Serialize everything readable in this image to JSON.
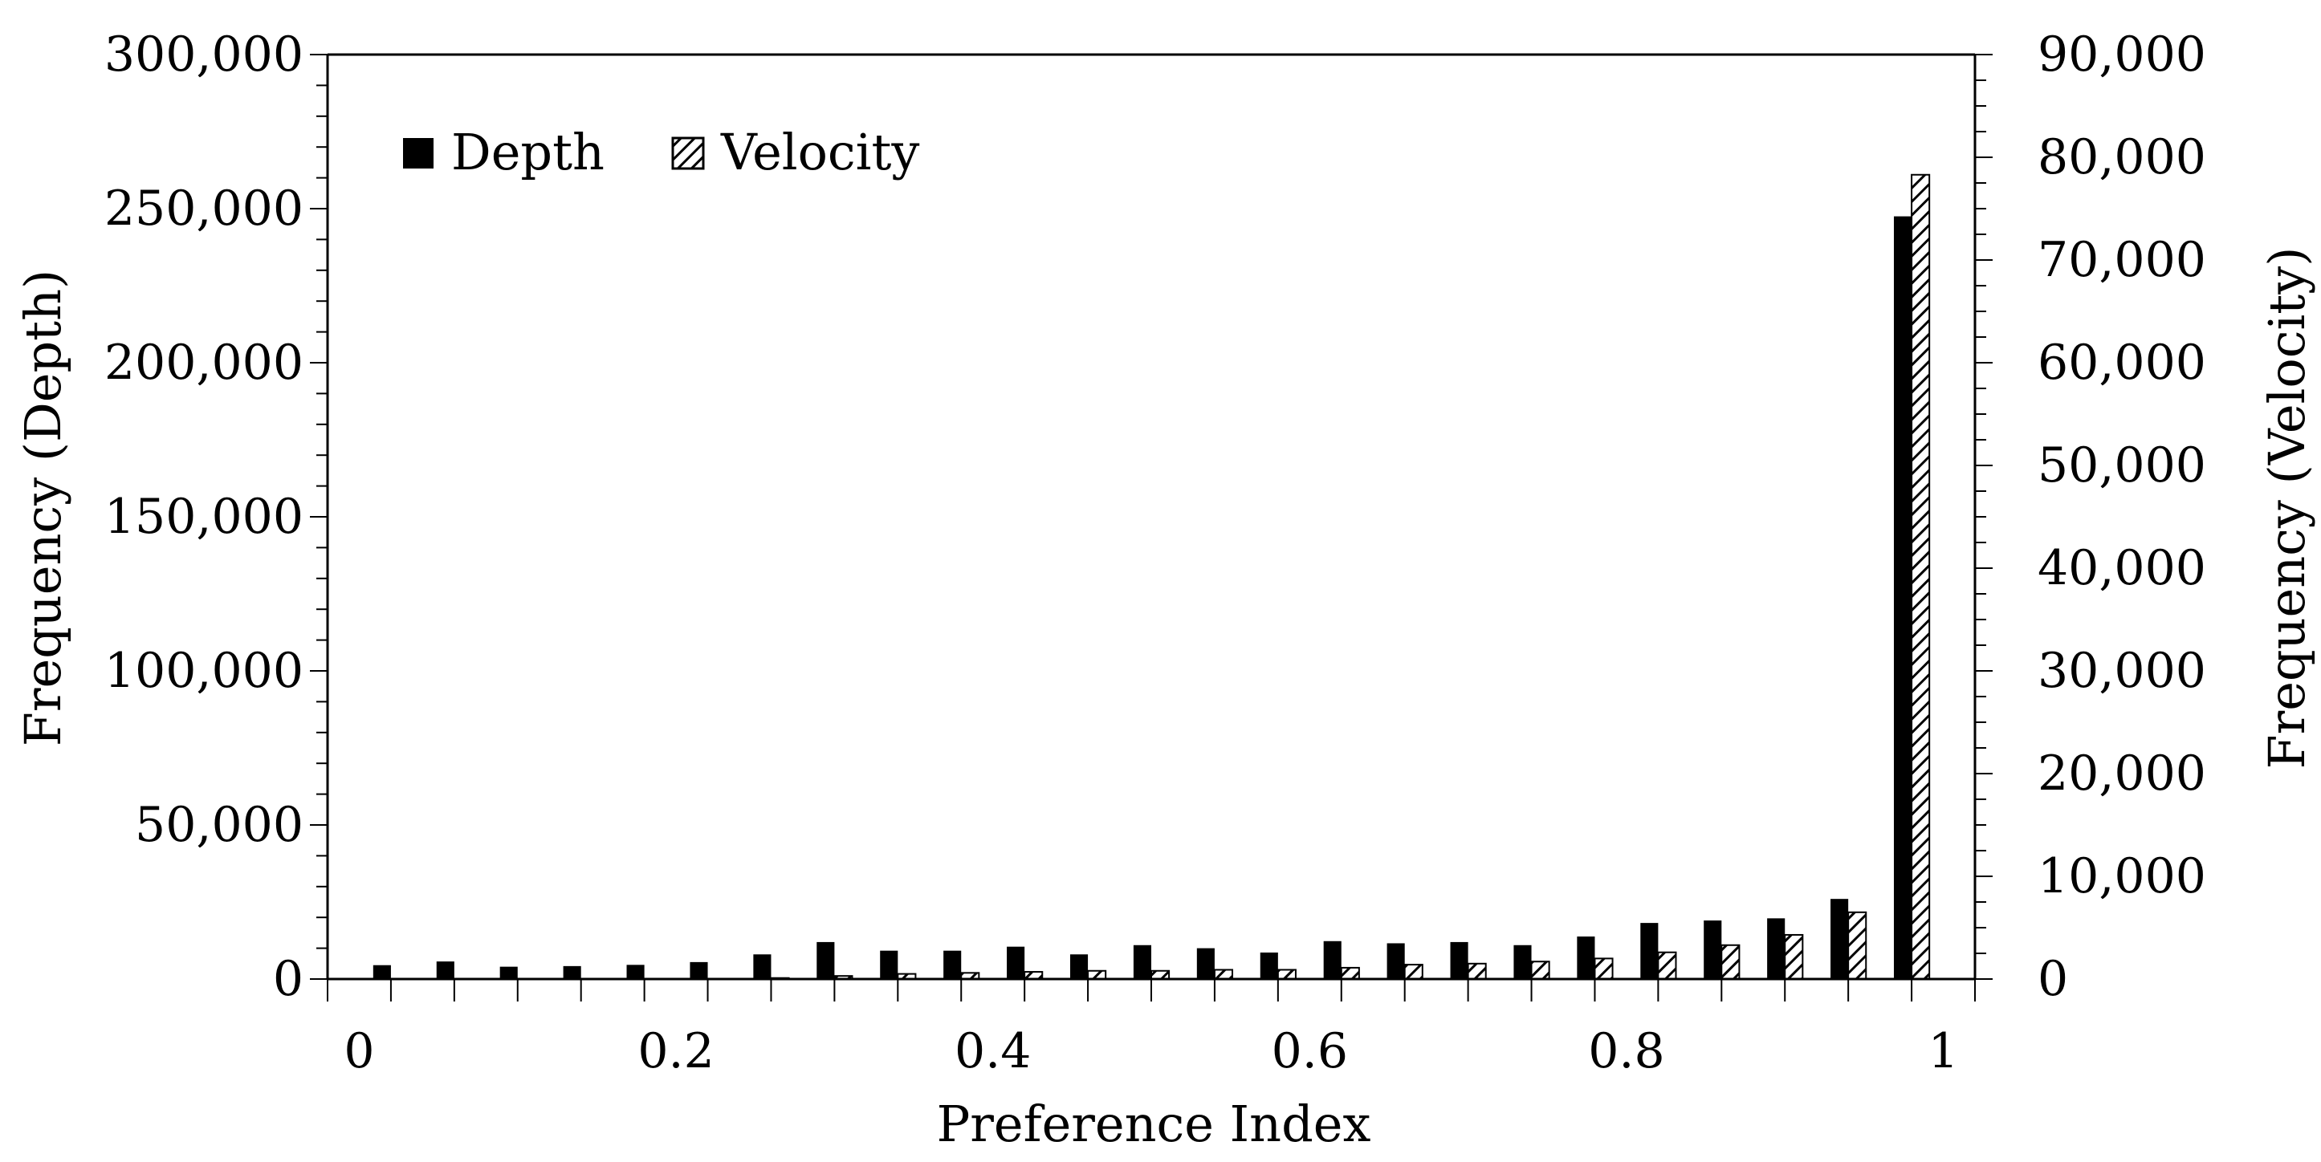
{
  "chart_data": {
    "type": "bar",
    "title": "",
    "xlabel": "Preference Index",
    "ylabel_left": "Frequency (Depth)",
    "ylabel_right": "Frequency (Velocity)",
    "xlim": [
      0,
      1.04
    ],
    "x_ticks": [
      0,
      0.2,
      0.4,
      0.6,
      0.8,
      1
    ],
    "x_tick_labels": [
      "0",
      "0.2",
      "0.4",
      "0.6",
      "0.8",
      "1"
    ],
    "ylim_left": [
      0,
      300000
    ],
    "y_ticks_left": [
      0,
      50000,
      100000,
      150000,
      200000,
      250000,
      300000
    ],
    "y_tick_labels_left": [
      "0",
      "50,000",
      "100,000",
      "150,000",
      "200,000",
      "250,000",
      "300,000"
    ],
    "ylim_right": [
      0,
      90000
    ],
    "y_ticks_right": [
      0,
      10000,
      20000,
      30000,
      40000,
      50000,
      60000,
      70000,
      80000,
      90000
    ],
    "y_tick_labels_right": [
      "0",
      "10,000",
      "20,000",
      "30,000",
      "40,000",
      "50,000",
      "60,000",
      "70,000",
      "80,000",
      "90,000"
    ],
    "grid": false,
    "legend_position": "top-left",
    "x": [
      0.04,
      0.08,
      0.12,
      0.16,
      0.2,
      0.24,
      0.28,
      0.32,
      0.36,
      0.4,
      0.44,
      0.48,
      0.52,
      0.56,
      0.6,
      0.64,
      0.68,
      0.72,
      0.76,
      0.8,
      0.84,
      0.88,
      0.92,
      0.96,
      1.0
    ],
    "series": [
      {
        "name": "Depth",
        "axis": "left",
        "fill": "#000000",
        "pattern": "solid",
        "values": [
          4500,
          5700,
          4000,
          4200,
          4600,
          5500,
          8000,
          12000,
          9200,
          9200,
          10500,
          8000,
          11000,
          10000,
          8600,
          12300,
          11600,
          12000,
          11000,
          13800,
          18200,
          19000,
          19700,
          26000,
          247500
        ]
      },
      {
        "name": "Velocity",
        "axis": "right",
        "fill": "#ffffff",
        "pattern": "diagonal-hatch",
        "values": [
          0,
          0,
          0,
          0,
          0,
          0,
          100,
          300,
          500,
          600,
          700,
          800,
          800,
          900,
          900,
          1100,
          1400,
          1500,
          1700,
          2000,
          2600,
          3300,
          4300,
          6500,
          78300
        ]
      }
    ]
  }
}
